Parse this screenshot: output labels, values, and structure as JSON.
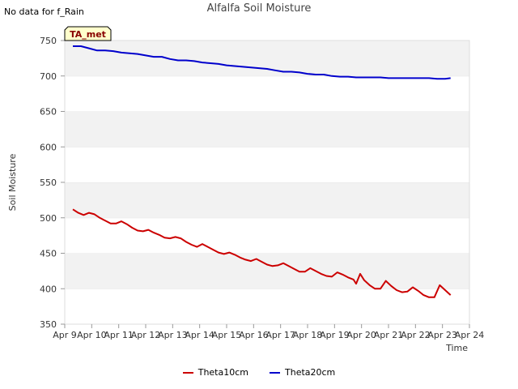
{
  "header": {
    "title": "Alfalfa Soil Moisture",
    "no_data_note": "No data for f_Rain",
    "badge": "TA_met"
  },
  "colors": {
    "theta10": "#cc0000",
    "theta20": "#0000cc",
    "band": "#f2f2f2",
    "badge_fill": "#ffffcc",
    "badge_text": "#880000"
  },
  "chart_data": {
    "type": "line",
    "title": "Alfalfa Soil Moisture",
    "xlabel": "Time",
    "ylabel": "Soil Moisture",
    "xlim": [
      9,
      24
    ],
    "ylim": [
      350,
      750
    ],
    "x_ticks": [
      "Apr 9",
      "Apr 10",
      "Apr 11",
      "Apr 12",
      "Apr 13",
      "Apr 14",
      "Apr 15",
      "Apr 16",
      "Apr 17",
      "Apr 18",
      "Apr 19",
      "Apr 20",
      "Apr 21",
      "Apr 22",
      "Apr 23",
      "Apr 24"
    ],
    "y_ticks": [
      350,
      400,
      450,
      500,
      550,
      600,
      650,
      700,
      750
    ],
    "grid": "horizontal alternating bands",
    "legend_position": "bottom",
    "series": [
      {
        "name": "Theta10cm",
        "color": "#cc0000",
        "x": [
          9.3,
          9.5,
          9.7,
          9.9,
          10.1,
          10.3,
          10.5,
          10.7,
          10.9,
          11.1,
          11.3,
          11.5,
          11.7,
          11.9,
          12.1,
          12.3,
          12.5,
          12.7,
          12.9,
          13.1,
          13.3,
          13.5,
          13.7,
          13.9,
          14.1,
          14.3,
          14.5,
          14.7,
          14.9,
          15.1,
          15.3,
          15.5,
          15.7,
          15.9,
          16.1,
          16.3,
          16.5,
          16.7,
          16.9,
          17.1,
          17.3,
          17.5,
          17.7,
          17.9,
          18.1,
          18.3,
          18.5,
          18.7,
          18.9,
          19.1,
          19.3,
          19.5,
          19.7,
          19.8,
          19.95,
          20.1,
          20.3,
          20.5,
          20.7,
          20.9,
          21.1,
          21.3,
          21.5,
          21.7,
          21.9,
          22.1,
          22.3,
          22.5,
          22.7,
          22.9,
          23.1,
          23.3
        ],
        "y": [
          512,
          507,
          504,
          507,
          505,
          500,
          496,
          492,
          492,
          495,
          491,
          486,
          482,
          481,
          483,
          479,
          476,
          472,
          471,
          473,
          471,
          466,
          462,
          459,
          463,
          459,
          455,
          451,
          449,
          451,
          448,
          444,
          441,
          439,
          442,
          438,
          434,
          432,
          433,
          436,
          432,
          428,
          424,
          424,
          429,
          425,
          421,
          418,
          417,
          423,
          420,
          416,
          413,
          407,
          421,
          412,
          405,
          400,
          400,
          411,
          404,
          398,
          395,
          396,
          402,
          397,
          391,
          388,
          388,
          405,
          398,
          391
        ]
      },
      {
        "name": "Theta20cm",
        "color": "#0000cc",
        "x": [
          9.3,
          9.6,
          9.9,
          10.2,
          10.5,
          10.8,
          11.1,
          11.4,
          11.7,
          12.0,
          12.3,
          12.6,
          12.9,
          13.2,
          13.5,
          13.8,
          14.1,
          14.4,
          14.7,
          15.0,
          15.3,
          15.6,
          15.9,
          16.2,
          16.5,
          16.8,
          17.1,
          17.4,
          17.7,
          18.0,
          18.3,
          18.6,
          18.9,
          19.2,
          19.5,
          19.8,
          20.1,
          20.4,
          20.7,
          21.0,
          21.3,
          21.6,
          21.9,
          22.2,
          22.5,
          22.8,
          23.1,
          23.3
        ],
        "y": [
          742,
          742,
          739,
          736,
          736,
          735,
          733,
          732,
          731,
          729,
          727,
          727,
          724,
          722,
          722,
          721,
          719,
          718,
          717,
          715,
          714,
          713,
          712,
          711,
          710,
          708,
          706,
          706,
          705,
          703,
          702,
          702,
          700,
          699,
          699,
          698,
          698,
          698,
          698,
          697,
          697,
          697,
          697,
          697,
          697,
          696,
          696,
          697
        ]
      }
    ]
  }
}
